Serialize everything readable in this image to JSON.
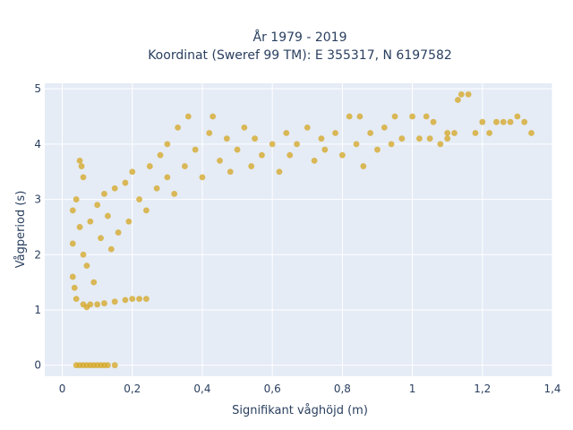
{
  "chart_data": {
    "type": "scatter",
    "title_lines": [
      "År 1979 - 2019",
      "Koordinat (Sweref 99 TM): E 355317, N 6197582"
    ],
    "xlabel": "Signifikant våghöjd (m)",
    "ylabel": "Vågperiod (s)",
    "xlim": [
      -0.05,
      1.4
    ],
    "ylim": [
      -0.2,
      5.1
    ],
    "x_ticks": [
      0,
      0.2,
      0.4,
      0.6,
      0.8,
      1,
      1.2,
      1.4
    ],
    "x_tick_labels": [
      "0",
      "0,2",
      "0,4",
      "0,6",
      "0,8",
      "1",
      "1,2",
      "1,4"
    ],
    "y_ticks": [
      0,
      1,
      2,
      3,
      4,
      5
    ],
    "y_tick_labels": [
      "0",
      "1",
      "2",
      "3",
      "4",
      "5"
    ],
    "grid": true,
    "marker_color": "#d4a520",
    "plot_background": "#e5ecf6",
    "series": [
      {
        "points": [
          [
            0.04,
            0.0
          ],
          [
            0.05,
            0.0
          ],
          [
            0.06,
            0.0
          ],
          [
            0.07,
            0.0
          ],
          [
            0.08,
            0.0
          ],
          [
            0.09,
            0.0
          ],
          [
            0.1,
            0.0
          ],
          [
            0.11,
            0.0
          ],
          [
            0.12,
            0.0
          ],
          [
            0.13,
            0.0
          ],
          [
            0.15,
            0.0
          ],
          [
            0.03,
            2.8
          ],
          [
            0.03,
            2.2
          ],
          [
            0.03,
            1.6
          ],
          [
            0.035,
            1.4
          ],
          [
            0.04,
            3.0
          ],
          [
            0.04,
            1.2
          ],
          [
            0.05,
            3.7
          ],
          [
            0.055,
            3.6
          ],
          [
            0.06,
            3.4
          ],
          [
            0.06,
            1.1
          ],
          [
            0.07,
            1.05
          ],
          [
            0.08,
            1.1
          ],
          [
            0.1,
            1.1
          ],
          [
            0.12,
            1.12
          ],
          [
            0.15,
            1.15
          ],
          [
            0.18,
            1.18
          ],
          [
            0.2,
            1.2
          ],
          [
            0.22,
            1.2
          ],
          [
            0.24,
            1.2
          ],
          [
            0.05,
            2.5
          ],
          [
            0.06,
            2.0
          ],
          [
            0.07,
            1.8
          ],
          [
            0.08,
            2.6
          ],
          [
            0.09,
            1.5
          ],
          [
            0.1,
            2.9
          ],
          [
            0.11,
            2.3
          ],
          [
            0.12,
            3.1
          ],
          [
            0.13,
            2.7
          ],
          [
            0.14,
            2.1
          ],
          [
            0.15,
            3.2
          ],
          [
            0.16,
            2.4
          ],
          [
            0.18,
            3.3
          ],
          [
            0.19,
            2.6
          ],
          [
            0.2,
            3.5
          ],
          [
            0.22,
            3.0
          ],
          [
            0.24,
            2.8
          ],
          [
            0.25,
            3.6
          ],
          [
            0.27,
            3.2
          ],
          [
            0.28,
            3.8
          ],
          [
            0.3,
            3.4
          ],
          [
            0.3,
            4.0
          ],
          [
            0.32,
            3.1
          ],
          [
            0.33,
            4.3
          ],
          [
            0.35,
            3.6
          ],
          [
            0.36,
            4.5
          ],
          [
            0.38,
            3.9
          ],
          [
            0.4,
            3.4
          ],
          [
            0.42,
            4.2
          ],
          [
            0.43,
            4.5
          ],
          [
            0.45,
            3.7
          ],
          [
            0.47,
            4.1
          ],
          [
            0.48,
            3.5
          ],
          [
            0.5,
            3.9
          ],
          [
            0.52,
            4.3
          ],
          [
            0.54,
            3.6
          ],
          [
            0.55,
            4.1
          ],
          [
            0.57,
            3.8
          ],
          [
            0.6,
            4.0
          ],
          [
            0.62,
            3.5
          ],
          [
            0.64,
            4.2
          ],
          [
            0.65,
            3.8
          ],
          [
            0.67,
            4.0
          ],
          [
            0.7,
            4.3
          ],
          [
            0.72,
            3.7
          ],
          [
            0.74,
            4.1
          ],
          [
            0.75,
            3.9
          ],
          [
            0.78,
            4.2
          ],
          [
            0.8,
            3.8
          ],
          [
            0.82,
            4.5
          ],
          [
            0.84,
            4.0
          ],
          [
            0.85,
            4.5
          ],
          [
            0.86,
            3.6
          ],
          [
            0.88,
            4.2
          ],
          [
            0.9,
            3.9
          ],
          [
            0.92,
            4.3
          ],
          [
            0.94,
            4.0
          ],
          [
            0.95,
            4.5
          ],
          [
            0.97,
            4.1
          ],
          [
            1.0,
            4.5
          ],
          [
            1.02,
            4.1
          ],
          [
            1.04,
            4.5
          ],
          [
            1.05,
            4.1
          ],
          [
            1.06,
            4.4
          ],
          [
            1.08,
            4.0
          ],
          [
            1.1,
            4.1
          ],
          [
            1.12,
            4.2
          ],
          [
            1.14,
            4.9
          ],
          [
            1.16,
            4.9
          ],
          [
            1.18,
            4.2
          ],
          [
            1.2,
            4.4
          ],
          [
            1.22,
            4.2
          ],
          [
            1.24,
            4.4
          ],
          [
            1.26,
            4.4
          ],
          [
            1.28,
            4.4
          ],
          [
            1.3,
            4.5
          ],
          [
            1.32,
            4.4
          ],
          [
            1.34,
            4.2
          ],
          [
            1.13,
            4.8
          ],
          [
            1.1,
            4.2
          ]
        ]
      }
    ]
  }
}
